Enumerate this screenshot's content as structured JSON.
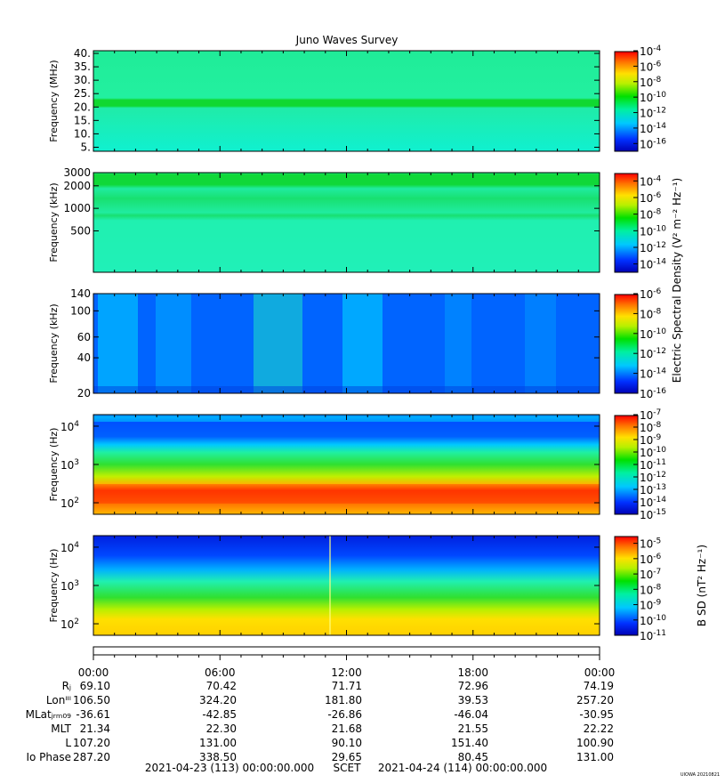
{
  "title": "Juno Waves Survey",
  "stamp": "UIOWA 20210821",
  "colors": {
    "axis": "#000000",
    "background": "#ffffff"
  },
  "chart_data": [
    {
      "type": "heatmap",
      "panel": "efield-mhz",
      "ylabel": "Frequency (MHz)",
      "y_ticks": [
        "40.",
        "35.",
        "30.",
        "25.",
        "20.",
        "15.",
        "10.",
        "5."
      ],
      "y_tick_values": [
        40,
        35,
        30,
        25,
        20,
        15,
        10,
        5
      ],
      "ylim": [
        3.5,
        41
      ],
      "yscale": "linear",
      "colorbar": {
        "range": [
          -17,
          -4
        ],
        "labels": [
          [
            "10",
            "-4"
          ],
          [
            "10",
            "-6"
          ],
          [
            "10",
            "-8"
          ],
          [
            "10",
            "-10"
          ],
          [
            "10",
            "-12"
          ],
          [
            "10",
            "-14"
          ],
          [
            "10",
            "-16"
          ]
        ],
        "label_exponents": [
          -4,
          -6,
          -8,
          -10,
          -12,
          -14,
          -16
        ]
      }
    },
    {
      "type": "heatmap",
      "panel": "efield-khz-high",
      "ylabel": "Frequency (kHz)",
      "y_ticks": [
        "3000",
        "2000",
        "1000",
        "500"
      ],
      "y_tick_values": [
        3000,
        2000,
        1000,
        500
      ],
      "ylim": [
        140,
        3000
      ],
      "yscale": "log",
      "colorbar": {
        "range": [
          -15,
          -3
        ],
        "labels": [
          [
            "10",
            "-4"
          ],
          [
            "10",
            "-6"
          ],
          [
            "10",
            "-8"
          ],
          [
            "10",
            "-10"
          ],
          [
            "10",
            "-12"
          ],
          [
            "10",
            "-14"
          ]
        ],
        "label_exponents": [
          -4,
          -6,
          -8,
          -10,
          -12,
          -14
        ]
      }
    },
    {
      "type": "heatmap",
      "panel": "efield-khz-low",
      "ylabel": "Frequency (kHz)",
      "y_ticks": [
        "140",
        "100",
        "60",
        "40",
        "20"
      ],
      "y_tick_values": [
        140,
        100,
        60,
        40,
        20
      ],
      "ylim": [
        20,
        140
      ],
      "yscale": "log",
      "colorbar": {
        "range": [
          -16,
          -6
        ],
        "labels": [
          [
            "10",
            "-6"
          ],
          [
            "10",
            "-8"
          ],
          [
            "10",
            "-10"
          ],
          [
            "10",
            "-12"
          ],
          [
            "10",
            "-14"
          ],
          [
            "10",
            "-16"
          ]
        ],
        "label_exponents": [
          -6,
          -8,
          -10,
          -12,
          -14,
          -16
        ]
      }
    },
    {
      "type": "heatmap",
      "panel": "efield-hz",
      "ylabel": "Frequency (Hz)",
      "y_ticks": [
        [
          "10",
          "4"
        ],
        [
          "10",
          "3"
        ],
        [
          "10",
          "2"
        ]
      ],
      "y_tick_values": [
        10000,
        1000,
        100
      ],
      "ylim": [
        50,
        20000
      ],
      "yscale": "log",
      "colorbar": {
        "range": [
          -15,
          -7
        ],
        "labels": [
          [
            "10",
            "-7"
          ],
          [
            "10",
            "-8"
          ],
          [
            "10",
            "-9"
          ],
          [
            "10",
            "-10"
          ],
          [
            "10",
            "-11"
          ],
          [
            "10",
            "-12"
          ],
          [
            "10",
            "-13"
          ],
          [
            "10",
            "-14"
          ],
          [
            "10",
            "-15"
          ]
        ],
        "label_exponents": [
          -7,
          -8,
          -9,
          -10,
          -11,
          -12,
          -13,
          -14,
          -15
        ]
      }
    },
    {
      "type": "heatmap",
      "panel": "bfield-hz",
      "ylabel": "Frequency (Hz)",
      "y_ticks": [
        [
          "10",
          "4"
        ],
        [
          "10",
          "3"
        ],
        [
          "10",
          "2"
        ]
      ],
      "y_tick_values": [
        10000,
        1000,
        100
      ],
      "ylim": [
        50,
        20000
      ],
      "yscale": "log",
      "colorbar": {
        "range": [
          -11,
          -4.5
        ],
        "labels": [
          [
            "10",
            "-5"
          ],
          [
            "10",
            "-6"
          ],
          [
            "10",
            "-7"
          ],
          [
            "10",
            "-8"
          ],
          [
            "10",
            "-9"
          ],
          [
            "10",
            "-10"
          ],
          [
            "10",
            "-11"
          ]
        ],
        "label_exponents": [
          -5,
          -6,
          -7,
          -8,
          -9,
          -10,
          -11
        ]
      }
    }
  ],
  "efield_colorbar_label": "Electric Spectral Density (V² m⁻² Hz⁻¹)",
  "bfield_colorbar_label": "B SD (nT² Hz⁻¹)",
  "time_axis": {
    "tick_labels": [
      "00:00",
      "06:00",
      "12:00",
      "18:00",
      "00:00"
    ],
    "hours": [
      0,
      6,
      12,
      18,
      24
    ]
  },
  "ephemeris": {
    "row_labels": [
      "Rⱼ",
      "Lonᴵᴵᴵ",
      "MLatⱼᵣₘ₀₉",
      "MLT",
      "L",
      "Io Phase"
    ],
    "rows": [
      [
        "69.10",
        "70.42",
        "71.71",
        "72.96",
        "74.19"
      ],
      [
        "106.50",
        "324.20",
        "181.80",
        "39.53",
        "257.20"
      ],
      [
        "-36.61",
        "-42.85",
        "-26.86",
        "-46.04",
        "-30.95"
      ],
      [
        "21.34",
        "22.30",
        "21.68",
        "21.55",
        "22.22"
      ],
      [
        "107.20",
        "131.00",
        "90.10",
        "151.40",
        "100.90"
      ],
      [
        "287.20",
        "338.50",
        "29.65",
        "80.45",
        "131.00"
      ]
    ]
  },
  "footer": {
    "start": "2021-04-23 (113) 00:00:00.000",
    "label": "SCET",
    "end": "2021-04-24 (114) 00:00:00.000"
  }
}
